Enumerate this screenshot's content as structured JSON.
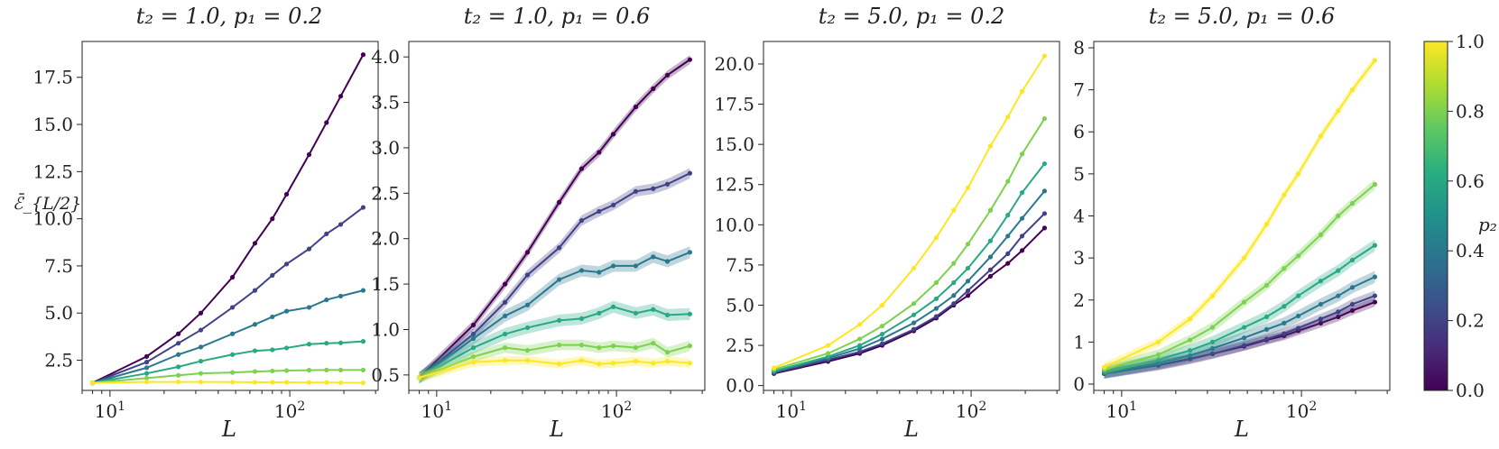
{
  "chart_data": [
    {
      "type": "line",
      "title": "t₂ = 1.0, p₁ = 0.2",
      "xlabel": "L",
      "ylabel": "ℰ̄_{L/2}",
      "xscale": "log",
      "xlim": [
        7,
        310
      ],
      "ylim": [
        0.9,
        19.4
      ],
      "yticks": [
        2.5,
        5.0,
        7.5,
        10.0,
        12.5,
        15.0,
        17.5
      ],
      "x": [
        8,
        16,
        24,
        32,
        48,
        64,
        80,
        96,
        128,
        160,
        192,
        256
      ],
      "band": false,
      "series": [
        {
          "p2": 0.0,
          "values": [
            1.3,
            2.7,
            3.9,
            5.0,
            6.9,
            8.7,
            10.0,
            11.3,
            13.4,
            15.1,
            16.5,
            18.7
          ]
        },
        {
          "p2": 0.2,
          "values": [
            1.3,
            2.4,
            3.4,
            4.1,
            5.3,
            6.2,
            7.0,
            7.6,
            8.4,
            9.2,
            9.7,
            10.6
          ]
        },
        {
          "p2": 0.4,
          "values": [
            1.3,
            2.1,
            2.8,
            3.2,
            3.9,
            4.4,
            4.8,
            5.1,
            5.3,
            5.7,
            5.9,
            6.2
          ]
        },
        {
          "p2": 0.6,
          "values": [
            1.3,
            1.8,
            2.15,
            2.45,
            2.8,
            3.0,
            3.05,
            3.15,
            3.35,
            3.4,
            3.42,
            3.5
          ]
        },
        {
          "p2": 0.8,
          "values": [
            1.3,
            1.55,
            1.7,
            1.8,
            1.85,
            1.9,
            1.93,
            1.95,
            1.97,
            1.98,
            1.98,
            1.98
          ]
        },
        {
          "p2": 1.0,
          "values": [
            1.3,
            1.35,
            1.35,
            1.35,
            1.34,
            1.33,
            1.33,
            1.33,
            1.32,
            1.32,
            1.31,
            1.3
          ]
        }
      ]
    },
    {
      "type": "line",
      "title": "t₂ = 1.0, p₁ = 0.6",
      "xlabel": "L",
      "ylabel": "",
      "xscale": "log",
      "xlim": [
        7,
        310
      ],
      "ylim": [
        0.33,
        4.17
      ],
      "yticks": [
        0.5,
        1.0,
        1.5,
        2.0,
        2.5,
        3.0,
        3.5,
        4.0
      ],
      "x": [
        8,
        16,
        24,
        32,
        48,
        64,
        80,
        96,
        128,
        160,
        192,
        256
      ],
      "band": true,
      "series": [
        {
          "p2": 0.0,
          "values": [
            0.47,
            1.05,
            1.5,
            1.85,
            2.4,
            2.77,
            2.95,
            3.15,
            3.45,
            3.65,
            3.8,
            3.97
          ]
        },
        {
          "p2": 0.2,
          "values": [
            0.47,
            0.95,
            1.3,
            1.6,
            1.9,
            2.2,
            2.3,
            2.37,
            2.52,
            2.55,
            2.6,
            2.72
          ]
        },
        {
          "p2": 0.4,
          "values": [
            0.47,
            0.9,
            1.15,
            1.27,
            1.55,
            1.65,
            1.63,
            1.7,
            1.7,
            1.8,
            1.75,
            1.85
          ]
        },
        {
          "p2": 0.6,
          "values": [
            0.47,
            0.8,
            0.95,
            1.02,
            1.1,
            1.12,
            1.18,
            1.25,
            1.18,
            1.22,
            1.16,
            1.17
          ]
        },
        {
          "p2": 0.8,
          "values": [
            0.47,
            0.7,
            0.8,
            0.77,
            0.83,
            0.83,
            0.8,
            0.82,
            0.8,
            0.85,
            0.75,
            0.82
          ]
        },
        {
          "p2": 1.0,
          "values": [
            0.47,
            0.64,
            0.66,
            0.66,
            0.62,
            0.66,
            0.62,
            0.63,
            0.65,
            0.63,
            0.65,
            0.63
          ]
        }
      ]
    },
    {
      "type": "line",
      "title": "t₂ = 5.0, p₁ = 0.2",
      "xlabel": "L",
      "ylabel": "",
      "xscale": "log",
      "xlim": [
        7,
        310
      ],
      "ylim": [
        -0.3,
        21.4
      ],
      "yticks": [
        0.0,
        2.5,
        5.0,
        7.5,
        10.0,
        12.5,
        15.0,
        17.5,
        20.0
      ],
      "x": [
        8,
        16,
        24,
        32,
        48,
        64,
        80,
        96,
        128,
        160,
        192,
        256
      ],
      "band": false,
      "series": [
        {
          "p2": 0.0,
          "values": [
            0.75,
            1.5,
            2.0,
            2.5,
            3.4,
            4.2,
            5.0,
            5.6,
            6.8,
            7.6,
            8.4,
            9.8
          ]
        },
        {
          "p2": 0.2,
          "values": [
            0.8,
            1.6,
            2.1,
            2.6,
            3.5,
            4.3,
            5.1,
            5.9,
            7.2,
            8.2,
            9.3,
            10.7
          ]
        },
        {
          "p2": 0.4,
          "values": [
            0.85,
            1.7,
            2.3,
            2.9,
            3.9,
            4.8,
            5.6,
            6.5,
            8.0,
            9.3,
            10.4,
            12.1
          ]
        },
        {
          "p2": 0.6,
          "values": [
            0.9,
            1.8,
            2.5,
            3.2,
            4.4,
            5.4,
            6.4,
            7.3,
            9.0,
            10.6,
            12.0,
            13.8
          ]
        },
        {
          "p2": 0.8,
          "values": [
            1.0,
            2.0,
            2.9,
            3.7,
            5.1,
            6.4,
            7.6,
            8.8,
            10.9,
            12.7,
            14.4,
            16.6
          ]
        },
        {
          "p2": 1.0,
          "values": [
            1.1,
            2.5,
            3.8,
            5.0,
            7.3,
            9.2,
            10.9,
            12.3,
            14.9,
            16.7,
            18.3,
            20.5
          ]
        }
      ]
    },
    {
      "type": "line",
      "title": "t₂ = 5.0, p₁ = 0.6",
      "xlabel": "L",
      "ylabel": "",
      "xscale": "log",
      "xlim": [
        7,
        310
      ],
      "ylim": [
        -0.15,
        8.15
      ],
      "yticks": [
        0,
        1,
        2,
        3,
        4,
        5,
        6,
        7,
        8
      ],
      "x": [
        8,
        16,
        24,
        32,
        48,
        64,
        80,
        96,
        128,
        160,
        192,
        256
      ],
      "band": true,
      "series": [
        {
          "p2": 0.0,
          "values": [
            0.25,
            0.45,
            0.6,
            0.72,
            0.9,
            1.05,
            1.15,
            1.27,
            1.45,
            1.6,
            1.75,
            1.95
          ]
        },
        {
          "p2": 0.2,
          "values": [
            0.25,
            0.45,
            0.6,
            0.72,
            0.92,
            1.07,
            1.2,
            1.33,
            1.55,
            1.72,
            1.9,
            2.1
          ]
        },
        {
          "p2": 0.4,
          "values": [
            0.27,
            0.5,
            0.68,
            0.85,
            1.1,
            1.3,
            1.45,
            1.62,
            1.9,
            2.1,
            2.3,
            2.55
          ]
        },
        {
          "p2": 0.6,
          "values": [
            0.3,
            0.58,
            0.8,
            1.0,
            1.35,
            1.6,
            1.85,
            2.1,
            2.45,
            2.7,
            2.95,
            3.3
          ]
        },
        {
          "p2": 0.8,
          "values": [
            0.35,
            0.7,
            1.05,
            1.35,
            1.95,
            2.35,
            2.75,
            3.05,
            3.55,
            4.0,
            4.3,
            4.75
          ]
        },
        {
          "p2": 1.0,
          "values": [
            0.4,
            1.0,
            1.55,
            2.1,
            3.0,
            3.8,
            4.5,
            5.0,
            5.9,
            6.5,
            7.0,
            7.7
          ]
        }
      ]
    }
  ],
  "colorbar": {
    "label": "p₂",
    "range": [
      0.0,
      1.0
    ],
    "ticks": [
      "0.0",
      "0.2",
      "0.4",
      "0.6",
      "0.8",
      "1.0"
    ],
    "colormap": "viridis",
    "colors": [
      "#440154",
      "#3b528b",
      "#21918c",
      "#5ec962",
      "#fde725"
    ]
  }
}
